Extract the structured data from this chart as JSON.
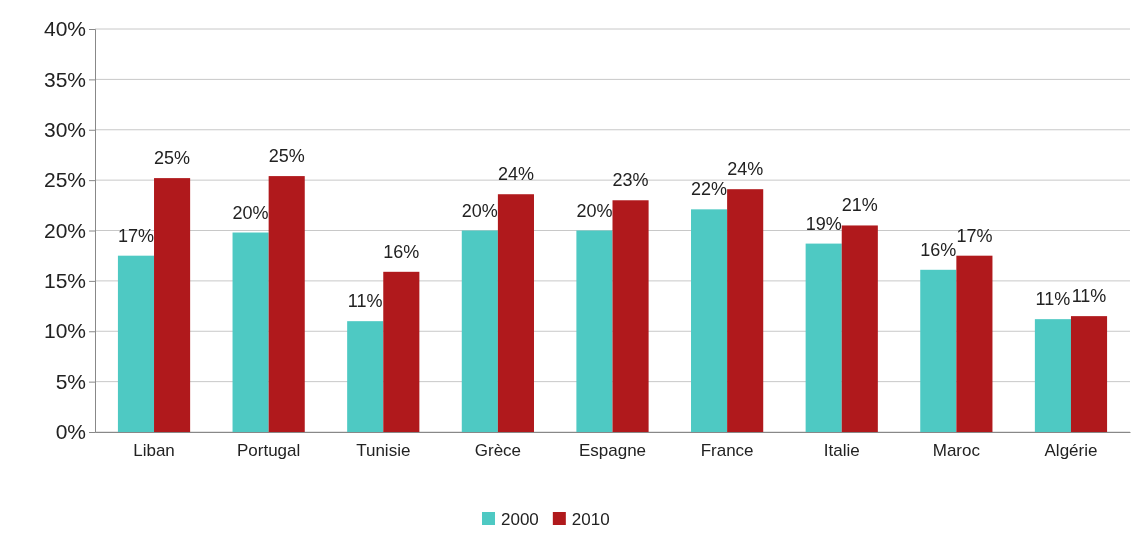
{
  "chart_data": {
    "type": "bar",
    "categories": [
      "Liban",
      "Portugal",
      "Tunisie",
      "Grèce",
      "Espagne",
      "France",
      "Italie",
      "Maroc",
      "Algérie"
    ],
    "series": [
      {
        "name": "2000",
        "color": "#4ec9c3",
        "values": [
          17.5,
          19.8,
          11.0,
          20.0,
          20.0,
          22.1,
          18.7,
          16.1,
          11.2
        ],
        "value_labels": [
          "17%",
          "20%",
          "11%",
          "20%",
          "20%",
          "22%",
          "19%",
          "16%",
          "11%"
        ]
      },
      {
        "name": "2010",
        "color": "#b0191c",
        "values": [
          25.2,
          25.4,
          15.9,
          23.6,
          23.0,
          24.1,
          20.5,
          17.5,
          11.5
        ],
        "value_labels": [
          "25%",
          "25%",
          "16%",
          "24%",
          "23%",
          "24%",
          "21%",
          "17%",
          "11%"
        ]
      }
    ],
    "ylim": [
      0,
      40
    ],
    "yticks": [
      {
        "value": 0,
        "label": "0%"
      },
      {
        "value": 5,
        "label": "5%"
      },
      {
        "value": 10,
        "label": "10%"
      },
      {
        "value": 15,
        "label": "15%"
      },
      {
        "value": 20,
        "label": "20%"
      },
      {
        "value": 25,
        "label": "25%"
      },
      {
        "value": 30,
        "label": "30%"
      },
      {
        "value": 35,
        "label": "35%"
      },
      {
        "value": 40,
        "label": "40%"
      }
    ],
    "grid": "y",
    "legend": "bottom"
  }
}
